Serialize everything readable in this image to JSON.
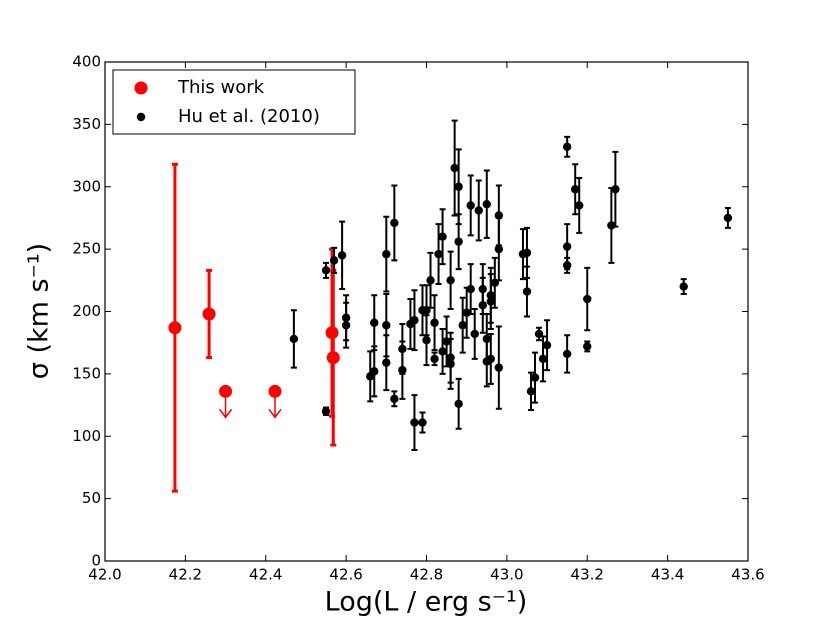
{
  "chart_data": {
    "type": "scatter",
    "xlabel": "Log(L / erg s⁻¹)",
    "ylabel": "σ (km s⁻¹)",
    "xlim": [
      42.0,
      43.6
    ],
    "ylim": [
      0,
      400
    ],
    "xticks": [
      {
        "value": 42.0,
        "label": "42.0"
      },
      42.2,
      42.4,
      42.6,
      42.8,
      {
        "value": 43.0,
        "label": "43.0"
      },
      43.2,
      43.4,
      43.6
    ],
    "yticks": [
      0,
      50,
      100,
      150,
      200,
      250,
      300,
      350,
      400
    ],
    "legend": "upper left",
    "series": [
      {
        "name": "This work",
        "color": "#ff0000",
        "x": [
          42.174,
          42.259,
          42.3,
          42.423,
          42.565,
          42.568
        ],
        "values": [
          187,
          198,
          136,
          136,
          183,
          163
        ],
        "errors": [
          131,
          35,
          null,
          null,
          67,
          70
        ],
        "upper_limits": [
          false,
          false,
          true,
          true,
          false,
          false
        ]
      },
      {
        "name": "Hu et al. (2010)",
        "color": "#000000",
        "x": [
          42.47,
          42.55,
          42.55,
          42.57,
          42.59,
          42.6,
          42.6,
          42.66,
          42.67,
          42.67,
          42.7,
          42.7,
          42.7,
          42.72,
          42.72,
          42.74,
          42.74,
          42.76,
          42.77,
          42.77,
          42.79,
          42.79,
          42.8,
          42.8,
          42.81,
          42.82,
          42.82,
          42.83,
          42.84,
          42.84,
          42.85,
          42.86,
          42.86,
          42.86,
          42.87,
          42.88,
          42.88,
          42.88,
          42.89,
          42.9,
          42.91,
          42.91,
          42.92,
          42.93,
          42.94,
          42.94,
          42.95,
          42.95,
          42.95,
          42.96,
          42.96,
          42.96,
          42.97,
          42.98,
          42.98,
          42.98,
          43.04,
          43.05,
          43.05,
          43.06,
          43.07,
          43.08,
          43.09,
          43.1,
          43.15,
          43.15,
          43.15,
          43.15,
          43.17,
          43.18,
          43.2,
          43.2,
          43.26,
          43.27,
          43.44,
          43.55
        ],
        "values": [
          178,
          233,
          120,
          241,
          245,
          195,
          189,
          148,
          152,
          191,
          246,
          189,
          159,
          271,
          130,
          170,
          153,
          190,
          111,
          193,
          111,
          201,
          177,
          201,
          225,
          162,
          191,
          246,
          260,
          168,
          176,
          163,
          158,
          225,
          315,
          300,
          256,
          126,
          189,
          199,
          285,
          218,
          182,
          281,
          205,
          218,
          286,
          178,
          160,
          208,
          213,
          162,
          223,
          277,
          250,
          155,
          246,
          247,
          216,
          136,
          147,
          182,
          162,
          173,
          332,
          252,
          237,
          166,
          298,
          285,
          210,
          172,
          269,
          298,
          220,
          275
        ],
        "errors": [
          23,
          6,
          3,
          10,
          27,
          18,
          18,
          20,
          20,
          22,
          30,
          25,
          22,
          30,
          6,
          20,
          23,
          20,
          22,
          24,
          8,
          20,
          20,
          20,
          22,
          5,
          22,
          24,
          22,
          18,
          20,
          20,
          20,
          23,
          38,
          30,
          22,
          20,
          22,
          20,
          24,
          20,
          20,
          24,
          22,
          20,
          27,
          20,
          20,
          22,
          22,
          20,
          20,
          24,
          25,
          33,
          20,
          20,
          20,
          15,
          20,
          5,
          18,
          20,
          8,
          18,
          6,
          15,
          20,
          22,
          25,
          4,
          30,
          30,
          6,
          8
        ]
      }
    ]
  }
}
